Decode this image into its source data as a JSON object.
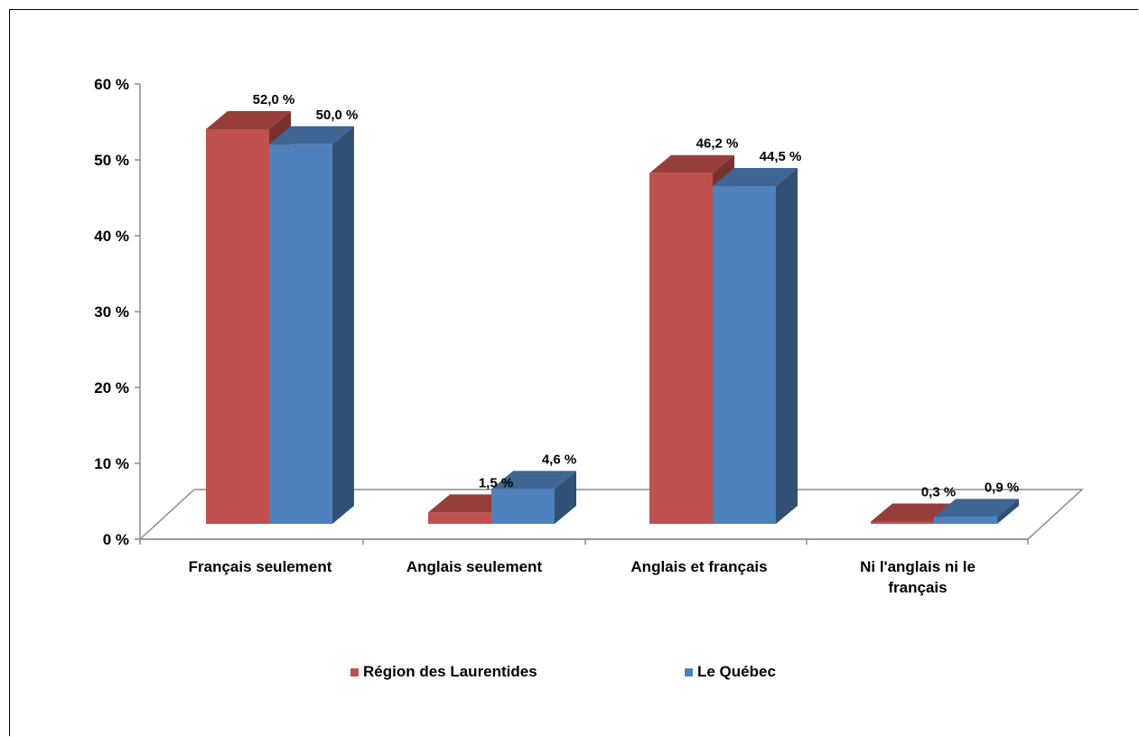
{
  "chart_data": {
    "type": "bar",
    "categories": [
      "Français seulement",
      "Anglais seulement",
      "Anglais et français",
      "Ni l'anglais ni le français"
    ],
    "category_lines": [
      [
        "Français seulement"
      ],
      [
        "Anglais seulement"
      ],
      [
        "Anglais et français"
      ],
      [
        "Ni l'anglais ni le",
        "français"
      ]
    ],
    "series": [
      {
        "name": "Région des Laurentides",
        "values": [
          52.0,
          1.5,
          46.2,
          0.3
        ],
        "labels": [
          "52,0 %",
          "1,5 %",
          "46,2 %",
          "0,3 %"
        ],
        "color": "#C0504D"
      },
      {
        "name": "Le Québec",
        "values": [
          50.0,
          4.6,
          44.5,
          0.9
        ],
        "labels": [
          "50,0 %",
          "4,6 %",
          "44,5 %",
          "0,9 %"
        ],
        "color": "#4F81BD"
      }
    ],
    "yticks": [
      0,
      10,
      20,
      30,
      40,
      50,
      60
    ],
    "ytick_labels": [
      "0 %",
      "10 %",
      "20 %",
      "30 %",
      "40 %",
      "50 %",
      "60 %"
    ],
    "ylim": [
      0,
      60
    ],
    "style": "3d-clustered-column",
    "legend_position": "bottom",
    "grid": false
  }
}
